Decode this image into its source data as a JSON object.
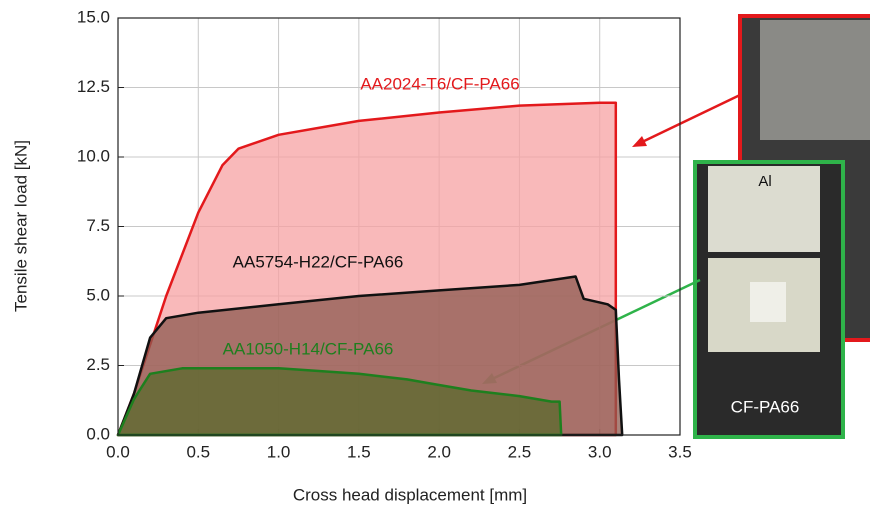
{
  "chart_data": {
    "type": "area",
    "xlabel": "Cross head displacement [mm]",
    "ylabel": "Tensile shear load [kN]",
    "xlim": [
      0,
      3.5
    ],
    "ylim": [
      0,
      15
    ],
    "xticks": [
      {
        "value": 0,
        "label": "0.0"
      },
      0.5,
      {
        "value": 1,
        "label": "1.0"
      },
      1.5,
      {
        "value": 2,
        "label": "2.0"
      },
      2.5,
      {
        "value": 3,
        "label": "3.0"
      },
      3.5
    ],
    "yticks": [
      {
        "value": 0,
        "label": "0.0"
      },
      2.5,
      {
        "value": 5,
        "label": "5.0"
      },
      7.5,
      {
        "value": 10,
        "label": "10.0"
      },
      12.5,
      {
        "value": 15,
        "label": "15.0"
      }
    ],
    "grid": true,
    "series": [
      {
        "name": "AA2024-T6/CF-PA66",
        "color": "#e3191c",
        "fill": "#f7a1a3",
        "x": [
          0,
          0.1,
          0.3,
          0.5,
          0.65,
          0.75,
          1.0,
          1.5,
          2.0,
          2.5,
          3.0,
          3.1,
          3.1
        ],
        "y": [
          0,
          1.5,
          5,
          8,
          9.7,
          10.3,
          10.8,
          11.3,
          11.6,
          11.85,
          11.95,
          11.95,
          0
        ]
      },
      {
        "name": "AA5754-H22/CF-PA66",
        "color": "#111111",
        "fill": "#8c5a4f",
        "x": [
          0,
          0.1,
          0.2,
          0.3,
          0.5,
          1.0,
          1.5,
          2.0,
          2.5,
          2.85,
          2.9,
          3.05,
          3.1,
          3.12,
          3.14
        ],
        "y": [
          0,
          1.5,
          3.5,
          4.2,
          4.4,
          4.7,
          5.0,
          5.2,
          5.4,
          5.7,
          4.9,
          4.7,
          4.5,
          2,
          0
        ]
      },
      {
        "name": "AA1050-H14/CF-PA66",
        "color": "#1e7f1e",
        "fill": "#5a6a2c",
        "x": [
          0,
          0.1,
          0.2,
          0.4,
          1.0,
          1.5,
          1.8,
          2.0,
          2.2,
          2.5,
          2.7,
          2.75,
          2.76
        ],
        "y": [
          0,
          1.3,
          2.2,
          2.4,
          2.4,
          2.2,
          2.0,
          1.8,
          1.6,
          1.4,
          1.2,
          1.2,
          0
        ]
      }
    ],
    "annotations": [
      "Al",
      "CF-PA66"
    ]
  }
}
